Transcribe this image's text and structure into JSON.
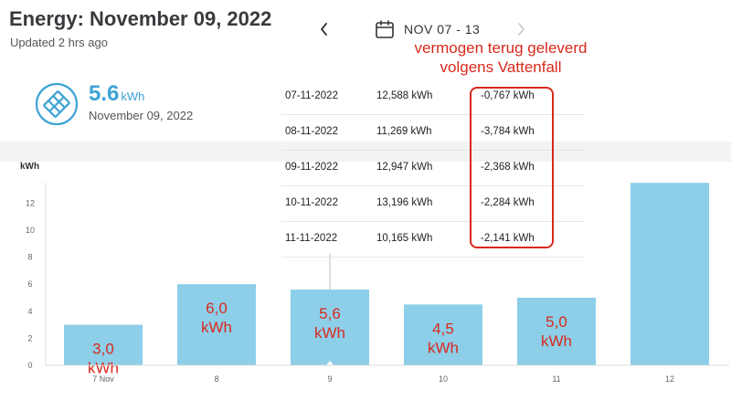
{
  "header": {
    "title": "Energy: November 09, 2022",
    "updated": "Updated 2 hrs ago",
    "date_range": "NOV 07 - 13"
  },
  "annotation": {
    "line1": "vermogen terug geleverd",
    "line2": "volgens Vattenfall"
  },
  "summary": {
    "value": "5.6",
    "unit": "kWh",
    "date": "November 09, 2022"
  },
  "table": {
    "rows": [
      {
        "date": "07-11-2022",
        "consumed": "12,588 kWh",
        "returned": "-0,767 kWh"
      },
      {
        "date": "08-11-2022",
        "consumed": "11,269 kWh",
        "returned": "-3,784 kWh"
      },
      {
        "date": "09-11-2022",
        "consumed": "12,947 kWh",
        "returned": "-2,368 kWh"
      },
      {
        "date": "10-11-2022",
        "consumed": "13,196 kWh",
        "returned": "-2,284 kWh"
      },
      {
        "date": "11-11-2022",
        "consumed": "10,165 kWh",
        "returned": "-2,141 kWh"
      }
    ]
  },
  "colors": {
    "bar": "#8dcfe9",
    "accent": "#3ea3d5",
    "annotation": "#d9291c"
  },
  "chart_data": {
    "type": "bar",
    "ylabel": "kWh",
    "categories": [
      "7 Nov",
      "8",
      "9",
      "10",
      "11",
      "12"
    ],
    "values": [
      3.0,
      6.0,
      5.6,
      4.5,
      5.0,
      13.5
    ],
    "yticks": [
      0,
      2,
      4,
      6,
      8,
      10,
      12
    ],
    "ylim": [
      0,
      14
    ],
    "selected_index": 2,
    "bar_labels": [
      {
        "value": "3,0",
        "unit": "kWh"
      },
      {
        "value": "6,0",
        "unit": "kWh"
      },
      {
        "value": "5,6",
        "unit": "kWh"
      },
      {
        "value": "4,5",
        "unit": "kWh"
      },
      {
        "value": "5,0",
        "unit": "kWh"
      }
    ]
  }
}
